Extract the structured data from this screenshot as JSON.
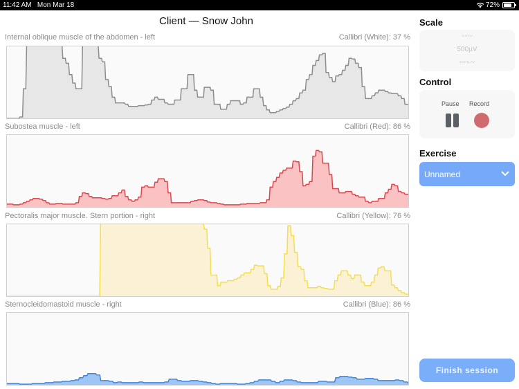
{
  "status_bar": {
    "time": "11:42 AM",
    "date": "Mon Mar 18",
    "battery": "72%",
    "wifi_icon": "wifi-icon",
    "battery_icon": "battery-icon"
  },
  "header": {
    "title": "Client — Snow John"
  },
  "channels": [
    {
      "muscle": "Internal oblique muscle of the abdomen - left",
      "device": "Callibri (White): 37 %",
      "stroke": "#8c8c8c",
      "fill": "#e3e3e3",
      "waveform": [
        0,
        0,
        0,
        0,
        0.02,
        0.42,
        1.2,
        1.2,
        1.2,
        1.2,
        1.2,
        1.2,
        1.2,
        1.2,
        1.2,
        1.2,
        1.2,
        0.85,
        0.78,
        0.62,
        0.5,
        0.42,
        0.42,
        1.2,
        1.2,
        1.2,
        1.2,
        1.2,
        0.85,
        0.8,
        0.55,
        0.45,
        0.3,
        0.22,
        0.22,
        0.22,
        0.2,
        0.17,
        0.17,
        0.17,
        0.18,
        0.18,
        0.19,
        0.2,
        0.26,
        0.3,
        0.27,
        0.27,
        0.22,
        0.2,
        0.2,
        0.26,
        0.26,
        0.42,
        0.42,
        0.62,
        0.62,
        0.4,
        0.3,
        0.3,
        0.44,
        0.44,
        0.4,
        0.2,
        0.2,
        0.13,
        0.13,
        0.2,
        0.25,
        0.25,
        0.25,
        0.2,
        0.22,
        0.3,
        0.3,
        0.42,
        0.42,
        0.3,
        0.18,
        0.12,
        0.08,
        0.08,
        0.1,
        0.12,
        0.14,
        0.16,
        0.2,
        0.25,
        0.28,
        0.36,
        0.4,
        0.55,
        0.62,
        0.75,
        0.82,
        0.9,
        0.92,
        0.65,
        0.58,
        0.52,
        0.6,
        0.62,
        0.68,
        0.75,
        0.85,
        0.84,
        0.78,
        0.72,
        0.45,
        0.28,
        0.28,
        0.32,
        0.36,
        0.4,
        0.4,
        0.38,
        0.36,
        0.35,
        0.35,
        0.32,
        0.28,
        0.2,
        0.2
      ],
      "scale_top": 1.0
    },
    {
      "muscle": "Subostea muscle - left",
      "device": "Callibri (Red): 86 %",
      "stroke": "#d9474c",
      "fill": "#f9b7b9",
      "waveform": [
        0.04,
        0.04,
        0.03,
        0.03,
        0.04,
        0.06,
        0.08,
        0.1,
        0.12,
        0.12,
        0.11,
        0.09,
        0.06,
        0.04,
        0.04,
        0.05,
        0.05,
        0.04,
        0.04,
        0.04,
        0.04,
        0.06,
        0.15,
        0.2,
        0.19,
        0.15,
        0.13,
        0.13,
        0.13,
        0.12,
        0.11,
        0.12,
        0.16,
        0.16,
        0.2,
        0.24,
        0.15,
        0.1,
        0.08,
        0.1,
        0.14,
        0.28,
        0.3,
        0.28,
        0.28,
        0.35,
        0.4,
        0.4,
        0.36,
        0.2,
        0.06,
        0.06,
        0.06,
        0.06,
        0.06,
        0.06,
        0.08,
        0.09,
        0.1,
        0.1,
        0.09,
        0.07,
        0.06,
        0.06,
        0.05,
        0.04,
        0.03,
        0.03,
        0.03,
        0.03,
        0.03,
        0.04,
        0.04,
        0.05,
        0.05,
        0.05,
        0.05,
        0.06,
        0.06,
        0.1,
        0.28,
        0.36,
        0.42,
        0.48,
        0.52,
        0.55,
        0.55,
        0.65,
        0.64,
        0.5,
        0.3,
        0.32,
        0.36,
        0.72,
        0.8,
        0.78,
        0.62,
        0.62,
        0.46,
        0.26,
        0.26,
        0.2,
        0.2,
        0.22,
        0.22,
        0.18,
        0.16,
        0.14,
        0.14,
        0.08,
        0.06,
        0.08,
        0.08,
        0.12,
        0.12,
        0.2,
        0.25,
        0.32,
        0.3,
        0.22,
        0.2,
        0.18,
        0.18
      ],
      "scale_top": 1.0
    },
    {
      "muscle": "Pectoralis major muscle. Stern portion - right",
      "device": "Callibri (Yellow): 76 %",
      "stroke": "#f5de4c",
      "fill": "#faf0cf",
      "waveform": [
        0,
        0,
        0,
        0,
        0,
        0,
        0,
        0,
        0,
        0,
        0,
        0,
        0,
        0,
        0,
        0,
        0,
        0,
        0,
        0,
        0,
        0,
        0,
        0,
        0,
        0,
        0,
        0,
        1.2,
        1.2,
        1.2,
        1.2,
        1.2,
        1.2,
        1.2,
        1.2,
        1.2,
        1.2,
        1.2,
        1.2,
        1.2,
        1.2,
        1.2,
        1.2,
        1.2,
        1.2,
        1.2,
        1.2,
        1.2,
        1.2,
        1.2,
        1.2,
        1.2,
        1.2,
        1.2,
        1.2,
        1.2,
        1.2,
        1.2,
        0.95,
        0.68,
        0.3,
        0.3,
        0.15,
        0.2,
        0.2,
        0.22,
        0.22,
        0.24,
        0.26,
        0.3,
        0.33,
        0.33,
        0.38,
        0.44,
        0.43,
        0.43,
        0.32,
        0.15,
        0.1,
        0.1,
        0.14,
        0.26,
        0.6,
        1.0,
        0.86,
        0.62,
        0.42,
        0.38,
        0.22,
        0.12,
        0.12,
        0.12,
        0.14,
        0.12,
        0.11,
        0.1,
        0.1,
        0.22,
        0.3,
        0.36,
        0.36,
        0.3,
        0.25,
        0.3,
        0.3,
        0.2,
        0.15,
        0.15,
        0.2,
        0.3,
        0.4,
        0.42,
        0.36,
        0.36,
        0.16,
        0.12,
        0.08,
        0.05,
        0.03,
        0.02
      ],
      "scale_top": 1.0
    },
    {
      "muscle": "Sternocleidomastoid muscle - right",
      "device": "Callibri (Blue): 86 %",
      "stroke": "#3f86d9",
      "fill": "#8dbbf2",
      "waveform": [
        0.02,
        0.02,
        0.02,
        0.01,
        0.01,
        0.01,
        0.02,
        0.02,
        0.02,
        0.03,
        0.03,
        0.04,
        0.04,
        0.05,
        0.05,
        0.06,
        0.07,
        0.1,
        0.13,
        0.16,
        0.16,
        0.14,
        0.06,
        0.06,
        0.05,
        0.03,
        0.04,
        0.03,
        0.03,
        0.03,
        0.03,
        0.04,
        0.03,
        0.03,
        0.03,
        0.03,
        0.03,
        0.04,
        0.08,
        0.08,
        0.06,
        0.05,
        0.05,
        0.06,
        0.06,
        0.05,
        0.04,
        0.03,
        0.02,
        0.01,
        0.02,
        0.02,
        0.02,
        0.02,
        0.01,
        0.01,
        0.02,
        0.03,
        0.05,
        0.07,
        0.07,
        0.07,
        0.05,
        0.03,
        0.05,
        0.07,
        0.07,
        0.06,
        0.04,
        0.03,
        0.03,
        0.03,
        0.03,
        0.05,
        0.05,
        0.04,
        0.04,
        0.1,
        0.12,
        0.12,
        0.11,
        0.1,
        0.08,
        0.08,
        0.09,
        0.09,
        0.08,
        0.06,
        0.06,
        0.06,
        0.06,
        0.07,
        0.06,
        0.04,
        0.02
      ],
      "scale_top": 1.0
    }
  ],
  "sidebar": {
    "scale": {
      "heading": "Scale",
      "options": [
        "1mV",
        "500µV",
        "200µV"
      ],
      "selected": "500µV"
    },
    "control": {
      "heading": "Control",
      "pause_label": "Pause",
      "record_label": "Record",
      "pause_icon": "pause-icon",
      "record_icon": "record-icon"
    },
    "exercise": {
      "heading": "Exercise",
      "selected": "Unnamed",
      "chevron_icon": "chevron-down-icon"
    },
    "finish_button": "Finish session"
  },
  "colors": {
    "accent": "#76aaf8",
    "record": "#d06a6f",
    "pause": "#5b5f66"
  }
}
